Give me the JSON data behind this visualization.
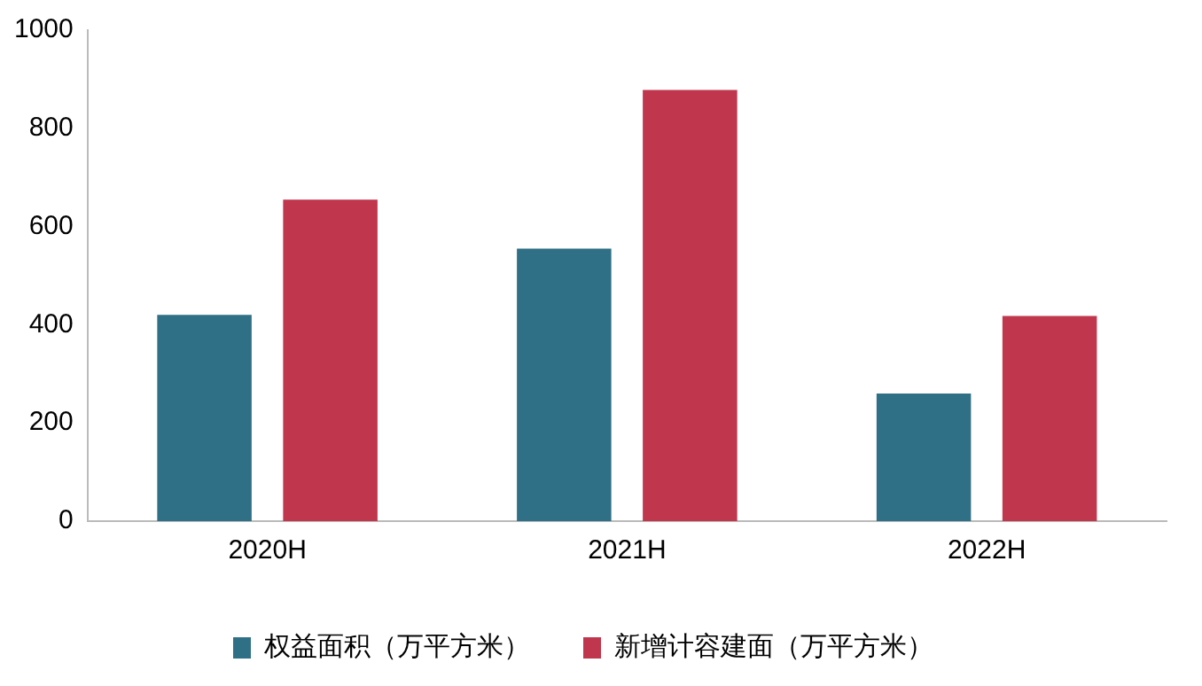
{
  "chart_data": {
    "type": "bar",
    "categories": [
      "2020H",
      "2021H",
      "2022H"
    ],
    "series": [
      {
        "name": "权益面积（万平方米）",
        "color": "#2f7086",
        "values": [
          420,
          555,
          260
        ]
      },
      {
        "name": "新增计容建面（万平方米）",
        "color": "#c0364c",
        "values": [
          655,
          878,
          418
        ]
      }
    ],
    "ylim": [
      0,
      1000
    ],
    "yticks": [
      0,
      200,
      400,
      600,
      800,
      1000
    ],
    "grid": false,
    "legend": "bottom"
  }
}
